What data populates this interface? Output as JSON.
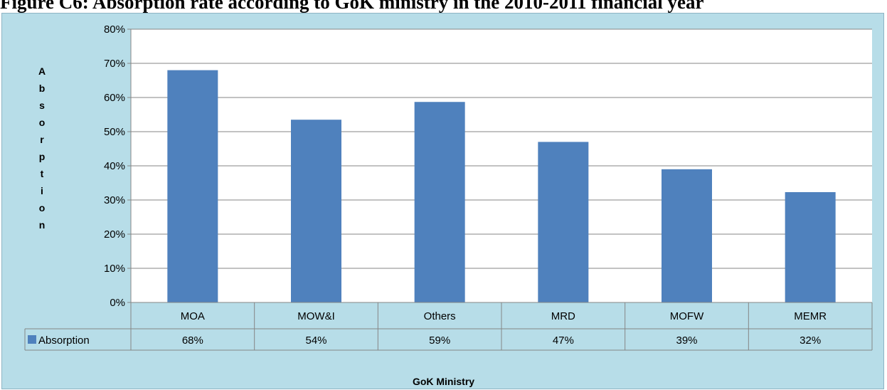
{
  "figure_title": "Figure C6: Absorption rate according to GoK ministry in the 2010-2011 financial year",
  "chart_data": {
    "type": "bar",
    "title": "Figure C6: Absorption rate according to GoK ministry in the 2010-2011 financial year",
    "xlabel": "GoK Ministry",
    "ylabel": "Absorption",
    "categories": [
      "MOA",
      "MOW&I",
      "Others",
      "MRD",
      "MOFW",
      "MEMR"
    ],
    "series": [
      {
        "name": "Absorption",
        "values": [
          68,
          53.5,
          58.7,
          47,
          39,
          32.3
        ],
        "labels": [
          "68%",
          "54%",
          "59%",
          "47%",
          "39%",
          "32%"
        ],
        "color": "#4f81bd"
      }
    ],
    "ylim": [
      0,
      80
    ],
    "yticks": [
      0,
      10,
      20,
      30,
      40,
      50,
      60,
      70,
      80
    ],
    "ytick_labels": [
      "0%",
      "10%",
      "20%",
      "30%",
      "40%",
      "50%",
      "60%",
      "70%",
      "80%"
    ],
    "grid": true,
    "legend": "data-table",
    "plot_background": "#ffffff",
    "chart_background": "#b7dde8"
  }
}
